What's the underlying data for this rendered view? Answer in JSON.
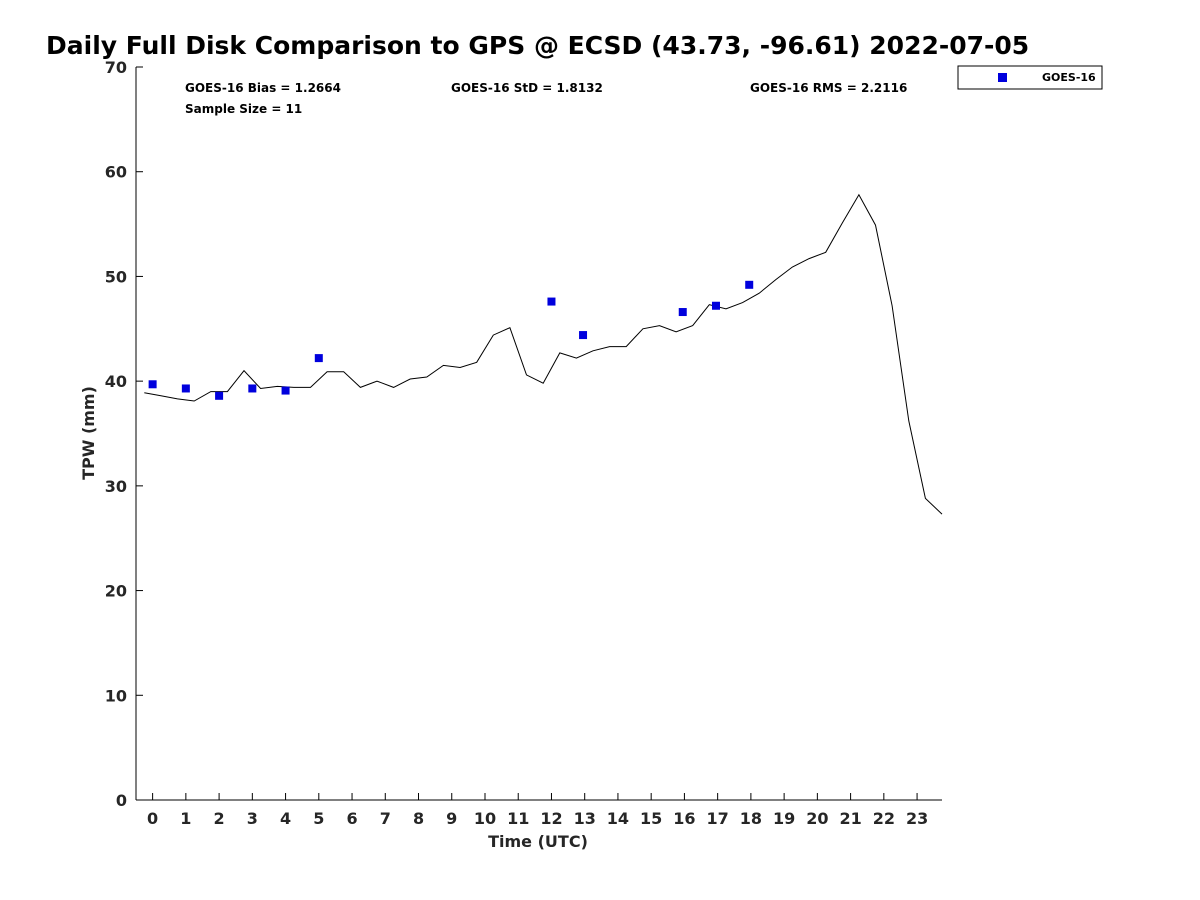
{
  "chart_data": {
    "type": "scatter",
    "title": "Daily Full Disk Comparison to GPS @ ECSD (43.73, -96.61) 2022-07-05",
    "xlabel": "Time (UTC)",
    "ylabel": "TPW (mm)",
    "xlim": [
      -0.5,
      23.75
    ],
    "ylim": [
      0,
      70
    ],
    "x_ticks": [
      0,
      1,
      2,
      3,
      4,
      5,
      6,
      7,
      8,
      9,
      10,
      11,
      12,
      13,
      14,
      15,
      16,
      17,
      18,
      19,
      20,
      21,
      22,
      23
    ],
    "y_ticks": [
      0,
      10,
      20,
      30,
      40,
      50,
      60,
      70
    ],
    "grid": false,
    "legend_position": "top-right (outside)",
    "stats": {
      "bias": "GOES-16 Bias = 1.2664",
      "std": "GOES-16 StD = 1.8132",
      "rms": "GOES-16 RMS = 2.2116",
      "sample_size": "Sample Size = 11"
    },
    "series": [
      {
        "name": "GOES-16",
        "kind": "marker",
        "color": "#0000dd",
        "marker": "square",
        "points": [
          [
            0.0,
            39.7
          ],
          [
            1.0,
            39.3
          ],
          [
            2.0,
            38.6
          ],
          [
            3.0,
            39.3
          ],
          [
            4.0,
            39.1
          ],
          [
            5.0,
            42.2
          ],
          [
            12.0,
            47.6
          ],
          [
            12.95,
            44.4
          ],
          [
            15.95,
            46.6
          ],
          [
            16.95,
            47.2
          ],
          [
            17.95,
            49.2
          ]
        ]
      },
      {
        "kind": "line",
        "color": "#000000",
        "points": [
          [
            -0.25,
            38.9
          ],
          [
            0.25,
            38.6
          ],
          [
            0.75,
            38.3
          ],
          [
            1.25,
            38.1
          ],
          [
            1.75,
            39.0
          ],
          [
            2.25,
            39.0
          ],
          [
            2.75,
            41.0
          ],
          [
            3.25,
            39.3
          ],
          [
            3.75,
            39.5
          ],
          [
            4.25,
            39.4
          ],
          [
            4.75,
            39.4
          ],
          [
            5.25,
            40.9
          ],
          [
            5.75,
            40.9
          ],
          [
            6.25,
            39.4
          ],
          [
            6.75,
            40.0
          ],
          [
            7.25,
            39.4
          ],
          [
            7.75,
            40.2
          ],
          [
            8.25,
            40.4
          ],
          [
            8.75,
            41.5
          ],
          [
            9.25,
            41.3
          ],
          [
            9.75,
            41.8
          ],
          [
            10.25,
            44.4
          ],
          [
            10.75,
            45.1
          ],
          [
            11.25,
            40.6
          ],
          [
            11.75,
            39.8
          ],
          [
            12.25,
            42.7
          ],
          [
            12.75,
            42.2
          ],
          [
            13.25,
            42.9
          ],
          [
            13.75,
            43.3
          ],
          [
            14.25,
            43.3
          ],
          [
            14.75,
            45.0
          ],
          [
            15.25,
            45.3
          ],
          [
            15.75,
            44.7
          ],
          [
            16.25,
            45.3
          ],
          [
            16.75,
            47.3
          ],
          [
            17.25,
            46.9
          ],
          [
            17.75,
            47.5
          ],
          [
            18.25,
            48.4
          ],
          [
            18.75,
            49.7
          ],
          [
            19.25,
            50.9
          ],
          [
            19.75,
            51.7
          ],
          [
            20.25,
            52.3
          ],
          [
            20.75,
            55.1
          ],
          [
            21.25,
            57.8
          ],
          [
            21.75,
            54.9
          ],
          [
            22.25,
            47.2
          ],
          [
            22.75,
            36.2
          ],
          [
            23.25,
            28.8
          ],
          [
            23.75,
            27.3
          ]
        ]
      }
    ]
  }
}
